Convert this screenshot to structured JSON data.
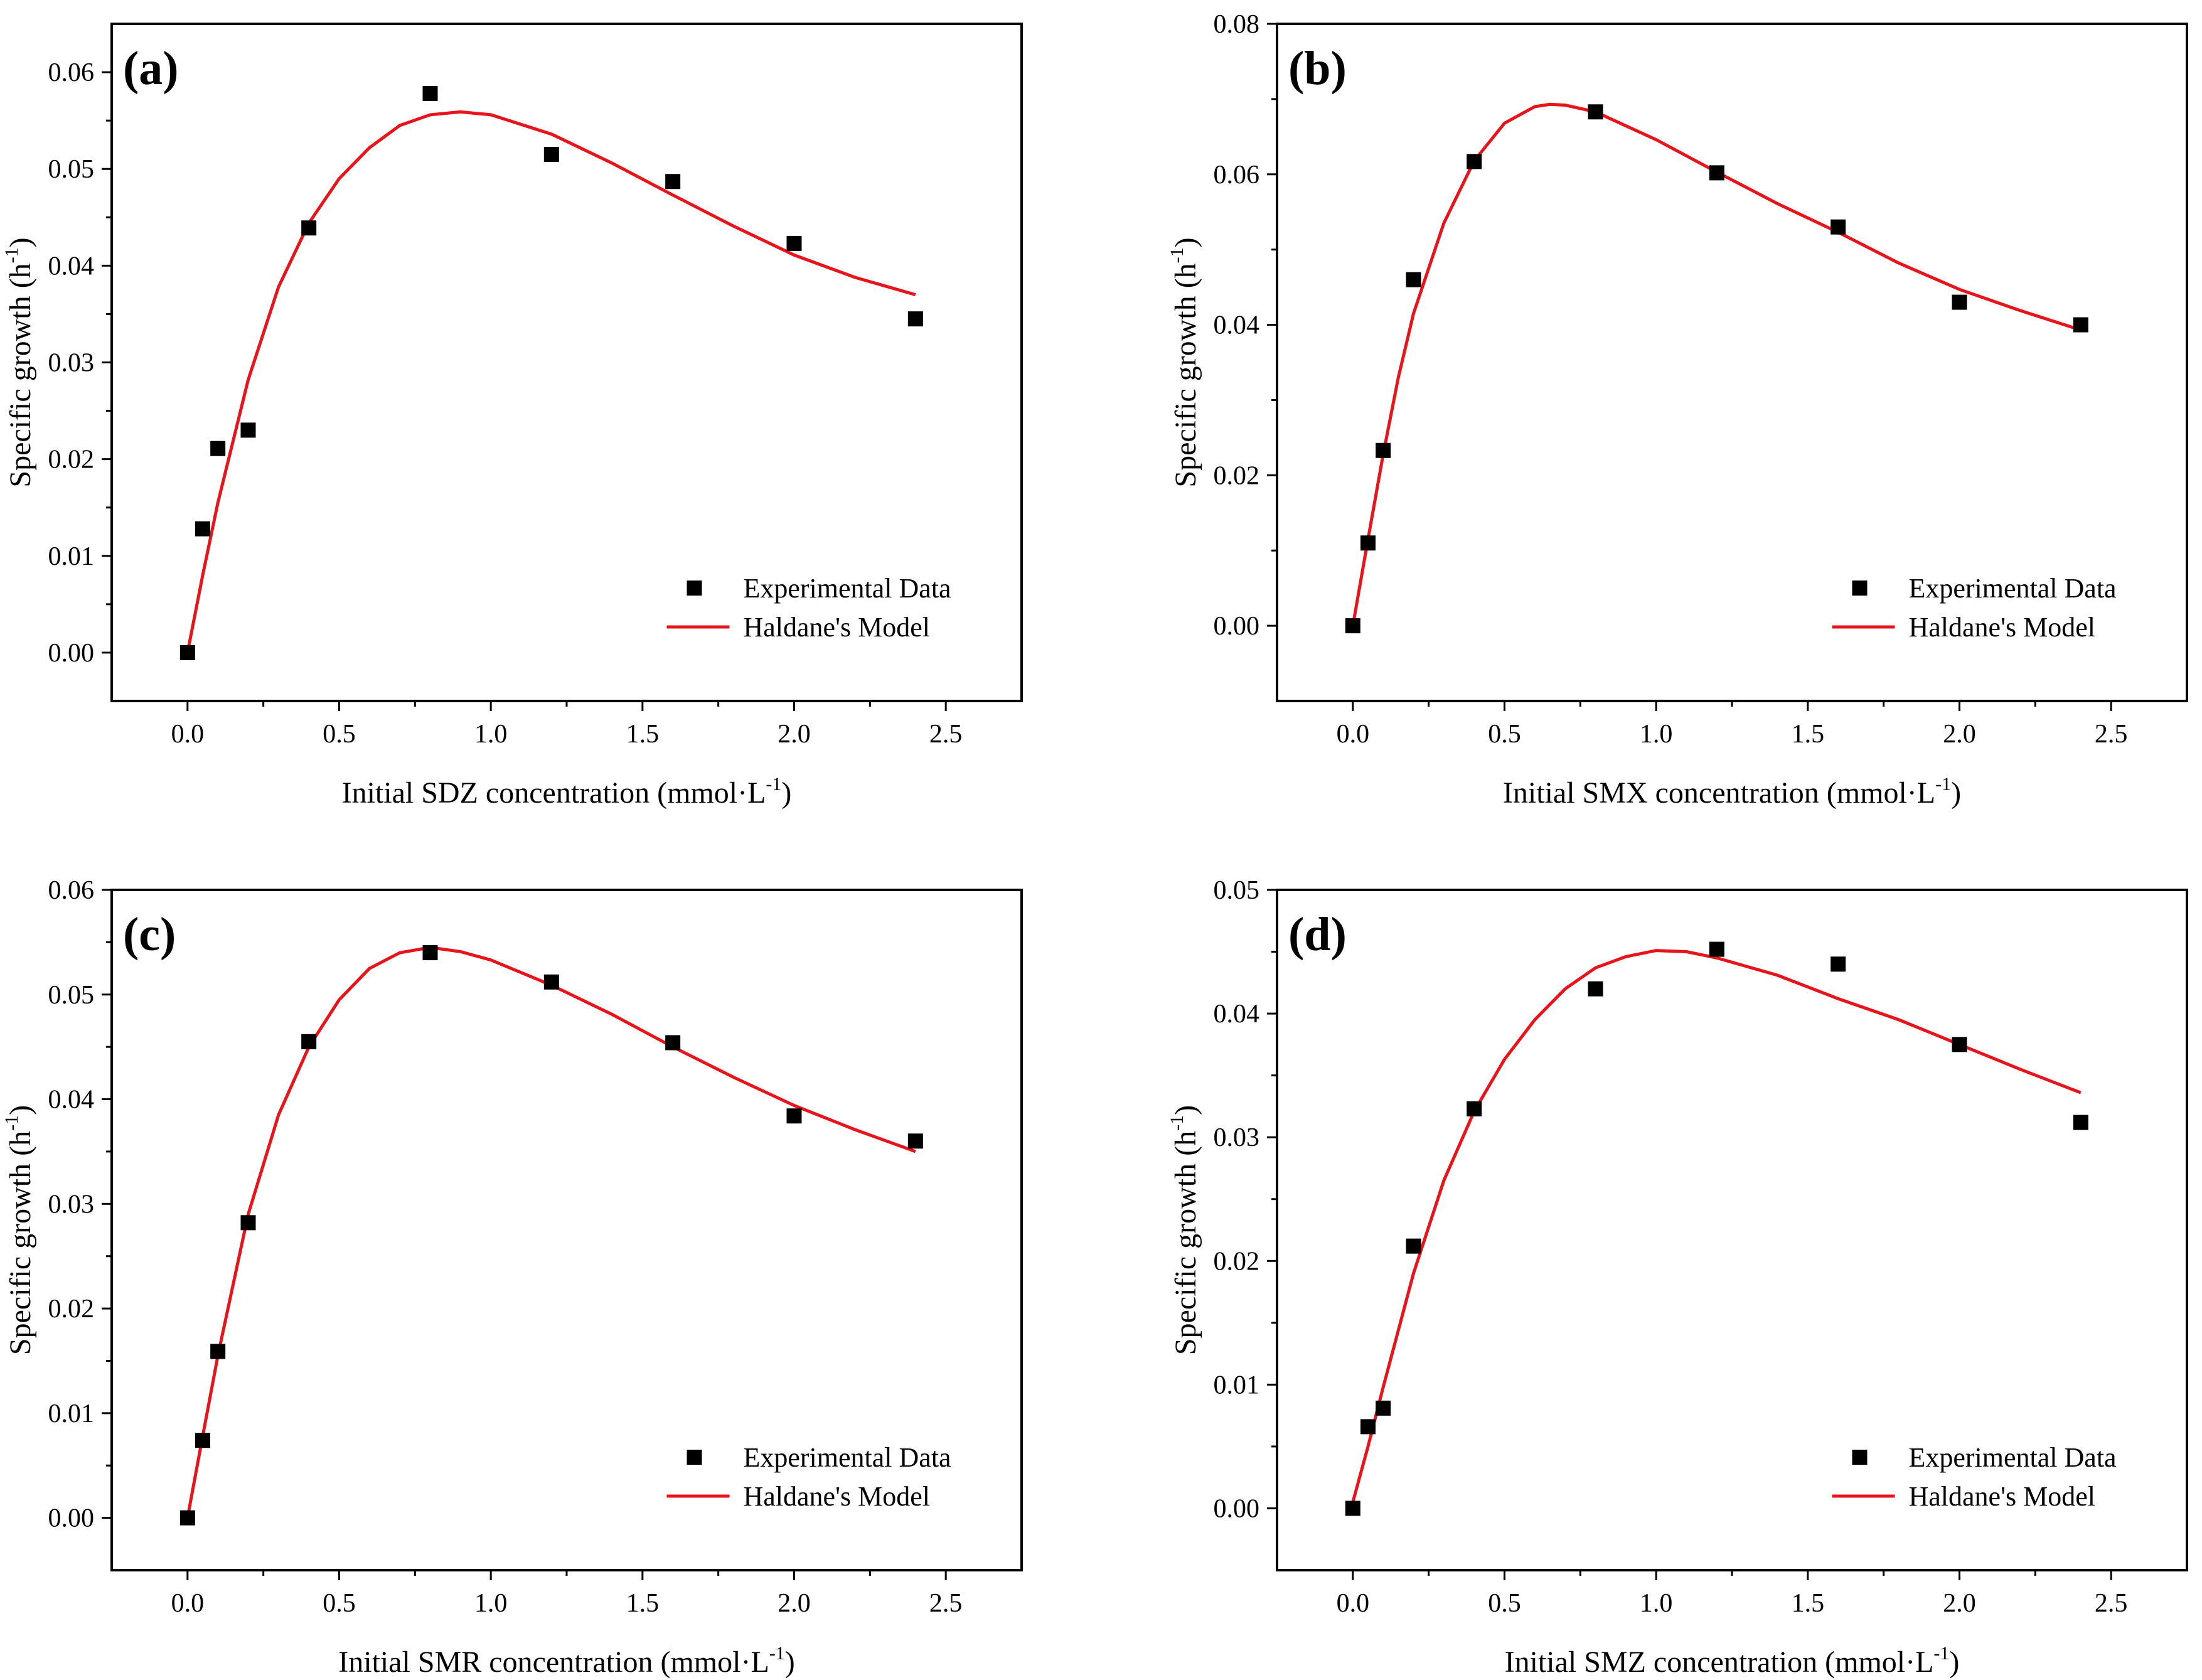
{
  "colors": {
    "fit": "#e8141b",
    "data": "#000000",
    "axis": "#000000"
  },
  "legend": {
    "placement": "bottom-right",
    "data_label": "Experimental Data",
    "fit_label": "Haldane's Model"
  },
  "chart_data": [
    {
      "type": "scatter",
      "panel_label": "(a)",
      "xlabel": "Initial SDZ concentration (mmol·L",
      "xlabel_sup": "-1",
      "xlabel_end": ")",
      "ylabel": "Specific growth (h",
      "ylabel_sup": "-1",
      "ylabel_end": ")",
      "xlim": [
        -0.25,
        2.75
      ],
      "ylim": [
        -0.005,
        0.065
      ],
      "xticks": [
        0.0,
        0.5,
        1.0,
        1.5,
        2.0,
        2.5
      ],
      "xtick_labels": [
        "0.0",
        "0.5",
        "1.0",
        "1.5",
        "2.0",
        "2.5"
      ],
      "yticks": [
        0.0,
        0.01,
        0.02,
        0.03,
        0.04,
        0.05,
        0.06
      ],
      "ytick_labels": [
        "0.00",
        "0.01",
        "0.02",
        "0.03",
        "0.04",
        "0.05",
        "0.06"
      ],
      "series": [
        {
          "name": "Experimental Data",
          "kind": "scatter",
          "x": [
            0.0,
            0.05,
            0.1,
            0.2,
            0.4,
            0.8,
            1.2,
            1.6,
            2.0,
            2.4
          ],
          "y": [
            0.0,
            0.0128,
            0.0211,
            0.023,
            0.0439,
            0.0578,
            0.0515,
            0.0487,
            0.0423,
            0.0345
          ]
        },
        {
          "name": "Haldane's Model",
          "kind": "line",
          "x": [
            0.0,
            0.05,
            0.1,
            0.2,
            0.3,
            0.4,
            0.5,
            0.6,
            0.7,
            0.8,
            0.9,
            1.0,
            1.2,
            1.4,
            1.6,
            1.8,
            2.0,
            2.2,
            2.4
          ],
          "y": [
            0.0,
            0.008,
            0.0155,
            0.0282,
            0.0378,
            0.0444,
            0.049,
            0.0522,
            0.0545,
            0.0556,
            0.0559,
            0.0556,
            0.0536,
            0.0506,
            0.0473,
            0.0441,
            0.0411,
            0.0388,
            0.037
          ]
        }
      ]
    },
    {
      "type": "scatter",
      "panel_label": "(b)",
      "xlabel": "Initial SMX concentration (mmol·L",
      "xlabel_sup": "-1",
      "xlabel_end": ")",
      "ylabel": "Specific growth (h",
      "ylabel_sup": "-1",
      "ylabel_end": ")",
      "xlim": [
        -0.25,
        2.75
      ],
      "ylim": [
        -0.01,
        0.08
      ],
      "xticks": [
        0.0,
        0.5,
        1.0,
        1.5,
        2.0,
        2.5
      ],
      "xtick_labels": [
        "0.0",
        "0.5",
        "1.0",
        "1.5",
        "2.0",
        "2.5"
      ],
      "yticks": [
        0.0,
        0.02,
        0.04,
        0.06,
        0.08
      ],
      "ytick_labels": [
        "0.00",
        "0.02",
        "0.04",
        "0.06",
        "0.08"
      ],
      "series": [
        {
          "name": "Experimental Data",
          "kind": "scatter",
          "x": [
            0.0,
            0.05,
            0.1,
            0.2,
            0.4,
            0.8,
            1.2,
            1.6,
            2.0,
            2.4
          ],
          "y": [
            0.0,
            0.011,
            0.0233,
            0.046,
            0.0617,
            0.0683,
            0.0602,
            0.053,
            0.043,
            0.04
          ]
        },
        {
          "name": "Haldane's Model",
          "kind": "line",
          "x": [
            0.0,
            0.05,
            0.1,
            0.15,
            0.2,
            0.3,
            0.4,
            0.5,
            0.6,
            0.65,
            0.7,
            0.8,
            1.0,
            1.2,
            1.4,
            1.6,
            1.8,
            2.0,
            2.2,
            2.4
          ],
          "y": [
            0.0,
            0.0115,
            0.0228,
            0.033,
            0.0415,
            0.0535,
            0.0618,
            0.0668,
            0.069,
            0.0693,
            0.0692,
            0.0683,
            0.0646,
            0.0603,
            0.0561,
            0.0523,
            0.0482,
            0.0447,
            0.0419,
            0.0393
          ]
        }
      ]
    },
    {
      "type": "scatter",
      "panel_label": "(c)",
      "xlabel": "Initial SMR concentration (mmol·L",
      "xlabel_sup": "-1",
      "xlabel_end": ")",
      "ylabel": "Specific growth (h",
      "ylabel_sup": "-1",
      "ylabel_end": ")",
      "xlim": [
        -0.25,
        2.75
      ],
      "ylim": [
        -0.005,
        0.06
      ],
      "xticks": [
        0.0,
        0.5,
        1.0,
        1.5,
        2.0,
        2.5
      ],
      "xtick_labels": [
        "0.0",
        "0.5",
        "1.0",
        "1.5",
        "2.0",
        "2.5"
      ],
      "yticks": [
        0.0,
        0.01,
        0.02,
        0.03,
        0.04,
        0.05,
        0.06
      ],
      "ytick_labels": [
        "0.00",
        "0.01",
        "0.02",
        "0.03",
        "0.04",
        "0.05",
        "0.06"
      ],
      "series": [
        {
          "name": "Experimental Data",
          "kind": "scatter",
          "x": [
            0.0,
            0.05,
            0.1,
            0.2,
            0.4,
            0.8,
            1.2,
            1.6,
            2.0,
            2.4
          ],
          "y": [
            0.0,
            0.0074,
            0.0159,
            0.0282,
            0.0455,
            0.054,
            0.0512,
            0.0454,
            0.0384,
            0.036
          ]
        },
        {
          "name": "Haldane's Model",
          "kind": "line",
          "x": [
            0.0,
            0.05,
            0.1,
            0.2,
            0.3,
            0.4,
            0.5,
            0.6,
            0.7,
            0.8,
            0.9,
            1.0,
            1.2,
            1.4,
            1.6,
            1.8,
            2.0,
            2.2,
            2.4
          ],
          "y": [
            0.0,
            0.0078,
            0.0155,
            0.029,
            0.0385,
            0.045,
            0.0495,
            0.0525,
            0.054,
            0.0545,
            0.0541,
            0.0533,
            0.0509,
            0.0481,
            0.045,
            0.0421,
            0.0394,
            0.0371,
            0.035
          ]
        }
      ]
    },
    {
      "type": "scatter",
      "panel_label": "(d)",
      "xlabel": "Initial SMZ concentration (mmol·L",
      "xlabel_sup": "-1",
      "xlabel_end": ")",
      "ylabel": "Specific growth (h",
      "ylabel_sup": "-1",
      "ylabel_end": ")",
      "xlim": [
        -0.25,
        2.75
      ],
      "ylim": [
        -0.005,
        0.05
      ],
      "xticks": [
        0.0,
        0.5,
        1.0,
        1.5,
        2.0,
        2.5
      ],
      "xtick_labels": [
        "0.0",
        "0.5",
        "1.0",
        "1.5",
        "2.0",
        "2.5"
      ],
      "yticks": [
        0.0,
        0.01,
        0.02,
        0.03,
        0.04,
        0.05
      ],
      "ytick_labels": [
        "0.00",
        "0.01",
        "0.02",
        "0.03",
        "0.04",
        "0.05"
      ],
      "series": [
        {
          "name": "Experimental Data",
          "kind": "scatter",
          "x": [
            0.0,
            0.05,
            0.1,
            0.2,
            0.4,
            0.8,
            1.2,
            1.6,
            2.0,
            2.4
          ],
          "y": [
            0.0,
            0.0066,
            0.0081,
            0.0212,
            0.0323,
            0.042,
            0.0452,
            0.044,
            0.0375,
            0.0312
          ]
        },
        {
          "name": "Haldane's Model",
          "kind": "line",
          "x": [
            0.0,
            0.05,
            0.1,
            0.2,
            0.3,
            0.4,
            0.5,
            0.6,
            0.7,
            0.8,
            0.9,
            1.0,
            1.1,
            1.2,
            1.4,
            1.6,
            1.8,
            2.0,
            2.2,
            2.4
          ],
          "y": [
            0.0005,
            0.005,
            0.0098,
            0.019,
            0.0265,
            0.0321,
            0.0363,
            0.0395,
            0.042,
            0.0437,
            0.0446,
            0.0451,
            0.045,
            0.0445,
            0.0431,
            0.0412,
            0.0395,
            0.0375,
            0.0355,
            0.0336
          ]
        }
      ]
    }
  ]
}
